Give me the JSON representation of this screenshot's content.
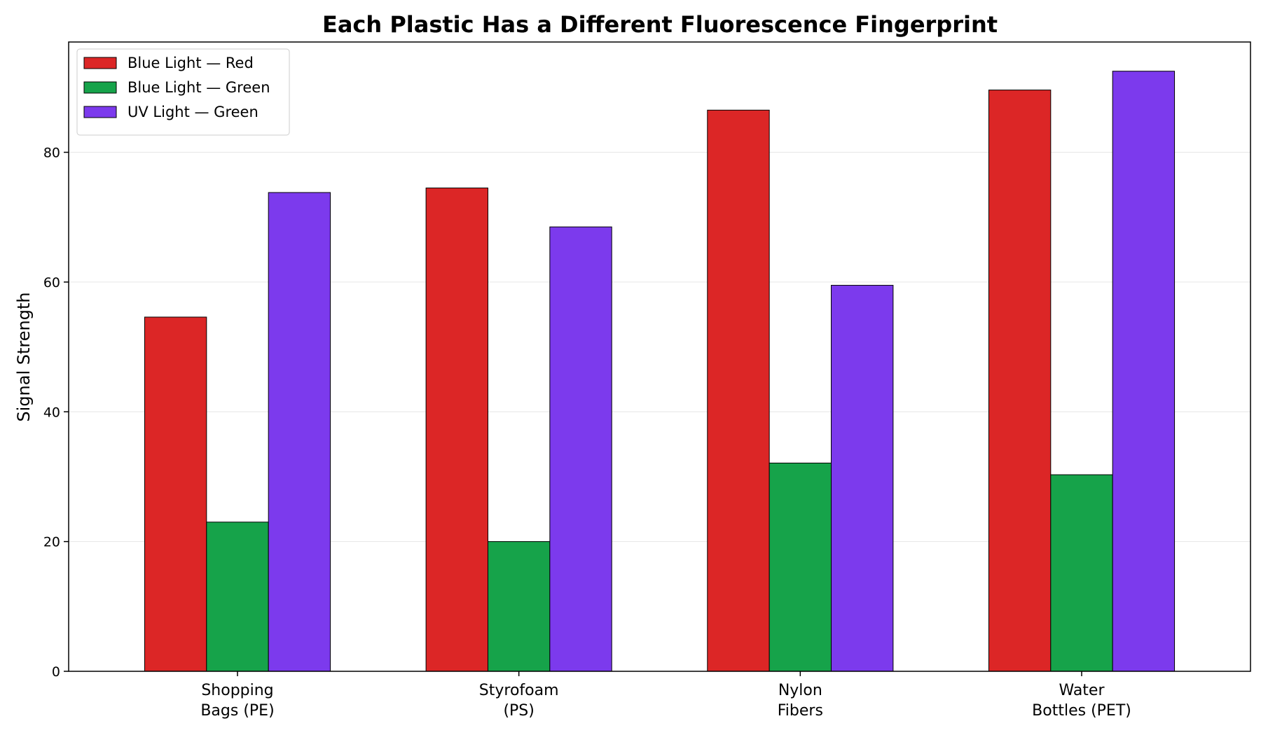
{
  "chart_data": {
    "type": "bar",
    "title": "Each Plastic Has a Different Fluorescence Fingerprint",
    "xlabel": "",
    "ylabel": "Signal Strength",
    "categories": [
      [
        "Shopping",
        "Bags (PE)"
      ],
      [
        "Styrofoam",
        "(PS)"
      ],
      [
        "Nylon",
        "Fibers"
      ],
      [
        "Water",
        "Bottles (PET)"
      ]
    ],
    "series": [
      {
        "name": "Blue Light — Red",
        "color": "#dc2626",
        "values": [
          54.6,
          74.5,
          86.5,
          89.6
        ]
      },
      {
        "name": "Blue Light — Green",
        "color": "#16a34a",
        "values": [
          23.0,
          20.0,
          32.1,
          30.3
        ]
      },
      {
        "name": "UV Light — Green",
        "color": "#7c3aed",
        "values": [
          73.8,
          68.5,
          59.5,
          92.5
        ]
      }
    ],
    "ylim": [
      0,
      97
    ],
    "yticks": [
      0,
      20,
      40,
      60,
      80
    ],
    "grid": "y",
    "legend": "upper-left"
  }
}
